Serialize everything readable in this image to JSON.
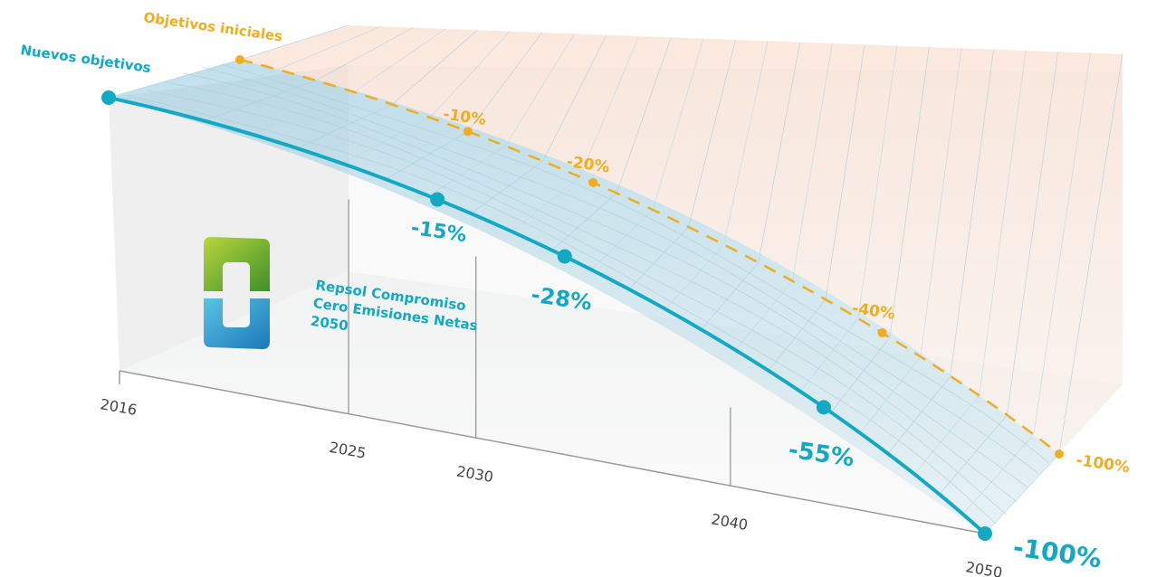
{
  "chart_data": {
    "type": "line",
    "title": "",
    "xlabel": "",
    "ylabel": "",
    "x_ticks": [
      "2016",
      "2025",
      "2030",
      "2040",
      "2050"
    ],
    "series": [
      {
        "name": "Nuevos objetivos",
        "color": "#14a9c2",
        "points": [
          {
            "x": 2016,
            "y": 0,
            "label": ""
          },
          {
            "x": 2025,
            "y": -15,
            "label": "-15%"
          },
          {
            "x": 2030,
            "y": -28,
            "label": "-28%"
          },
          {
            "x": 2040,
            "y": -55,
            "label": "-55%"
          },
          {
            "x": 2050,
            "y": -100,
            "label": "-100%"
          }
        ]
      },
      {
        "name": "Objetivos iniciales",
        "color": "#f0ad22",
        "points": [
          {
            "x": 2016,
            "y": 0,
            "label": ""
          },
          {
            "x": 2025,
            "y": -10,
            "label": "-10%"
          },
          {
            "x": 2030,
            "y": -20,
            "label": "-20%"
          },
          {
            "x": 2040,
            "y": -40,
            "label": "-40%"
          },
          {
            "x": 2050,
            "y": -100,
            "label": "-100%"
          }
        ]
      }
    ]
  },
  "logo": {
    "icon": "repsol-emissions-logo-icon",
    "text_lines": [
      "Repsol Compromiso",
      "Cero Emisiones Netas",
      "2050"
    ]
  }
}
